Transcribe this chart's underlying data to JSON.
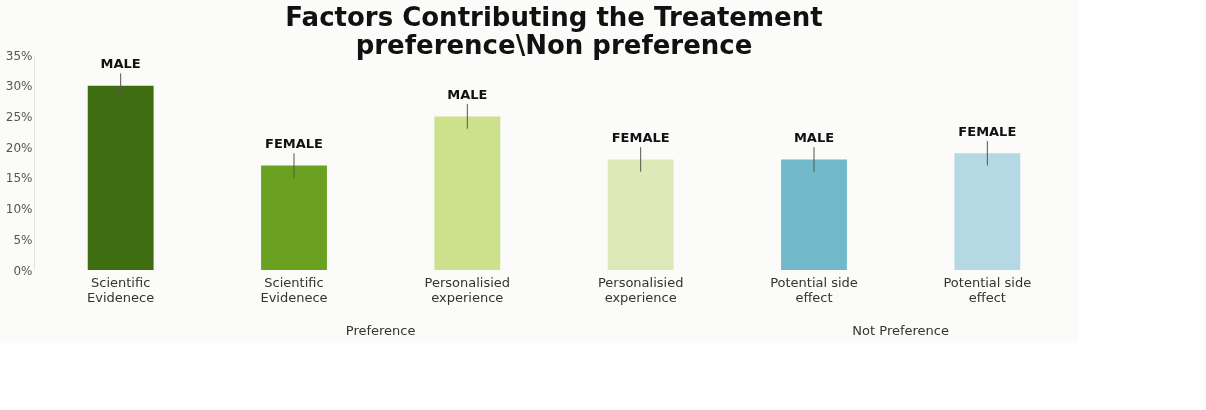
{
  "chart_data": {
    "type": "bar",
    "title": "Factors Contributing the Treatement\npreference\\Non preference",
    "categories": [
      "Scientific\nEvidenece",
      "Scientific\nEvidenece",
      "Personalisied\nexperience",
      "Personalisied\nexperience",
      "Potential side\neffect",
      "Potential side\neffect"
    ],
    "values": [
      30,
      17,
      25,
      18,
      18,
      19
    ],
    "errors": [
      2,
      2,
      2,
      2,
      2,
      2
    ],
    "colors": [
      "#3f6e12",
      "#6aa121",
      "#cde08c",
      "#dde9b8",
      "#72b8cb",
      "#b5d9e4"
    ],
    "value_labels": [
      "MALE",
      "FEMALE",
      "MALE",
      "FEMALE",
      "MALE",
      "FEMALE"
    ],
    "annotations": [
      "Preference",
      "Not Preference"
    ],
    "ylim": [
      0,
      35
    ],
    "yticks": [
      {
        "value": 0,
        "label": "0%"
      },
      {
        "value": 5,
        "label": "5%"
      },
      {
        "value": 10,
        "label": "10%"
      },
      {
        "value": 15,
        "label": "15%"
      },
      {
        "value": 20,
        "label": "20%"
      },
      {
        "value": 25,
        "label": "25%"
      },
      {
        "value": 30,
        "label": "30%"
      },
      {
        "value": 35,
        "label": "35%"
      }
    ],
    "grid": false
  }
}
